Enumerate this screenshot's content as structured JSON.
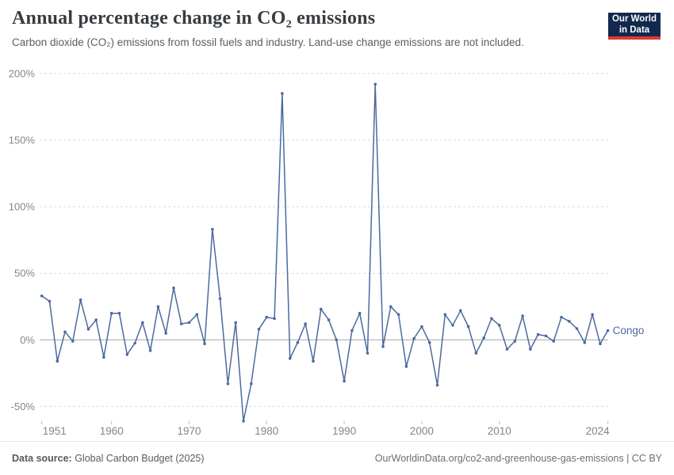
{
  "header": {
    "title": "Annual percentage change in CO₂ emissions",
    "subtitle": "Carbon dioxide (CO₂) emissions from fossil fuels and industry. Land-use change emissions are not included."
  },
  "logo": {
    "line1": "Our World",
    "line2": "in Data",
    "bg_color": "#12294d",
    "bar_color": "#dc3a2f"
  },
  "footer": {
    "source_label": "Data source:",
    "source_value": " Global Carbon Budget (2025)",
    "credit": "OurWorldinData.org/co2-and-greenhouse-gas-emissions | CC BY"
  },
  "chart_data": {
    "type": "line",
    "title": "Annual percentage change in CO₂ emissions",
    "entity_label": "Congo",
    "line_color": "#4c6a9e",
    "axis_text_color": "#858585",
    "grid_color": "#dadada",
    "zero_line_color": "#a6a6a6",
    "tick_mark_color": "#bfbfbf",
    "grid": "horizontal dashed, solid zero line",
    "legend_position": "end-of-line label",
    "ylim": [
      -70,
      205
    ],
    "xlim": [
      1951,
      2024
    ],
    "x": [
      1951,
      1952,
      1953,
      1954,
      1955,
      1956,
      1957,
      1958,
      1959,
      1960,
      1961,
      1962,
      1963,
      1964,
      1965,
      1966,
      1967,
      1968,
      1969,
      1970,
      1971,
      1972,
      1973,
      1974,
      1975,
      1976,
      1977,
      1978,
      1979,
      1980,
      1981,
      1982,
      1983,
      1984,
      1985,
      1986,
      1987,
      1988,
      1989,
      1990,
      1991,
      1992,
      1993,
      1994,
      1995,
      1996,
      1997,
      1998,
      1999,
      2000,
      2001,
      2002,
      2003,
      2004,
      2005,
      2006,
      2007,
      2008,
      2009,
      2010,
      2011,
      2012,
      2013,
      2014,
      2015,
      2016,
      2017,
      2018,
      2019,
      2020,
      2021,
      2022,
      2023,
      2024
    ],
    "series": [
      {
        "name": "Congo",
        "values": [
          33,
          29,
          -16,
          6,
          -1,
          30,
          8,
          15,
          -13,
          20,
          20,
          -11,
          -2.5,
          13,
          -8,
          25,
          5,
          39,
          12,
          13,
          19,
          -3,
          83,
          31,
          -33,
          13,
          -61,
          -33,
          8,
          17,
          16,
          185,
          -14,
          -2,
          12,
          -16,
          23,
          15,
          0,
          -31,
          7,
          20,
          -10,
          192,
          -5,
          25,
          19,
          -20,
          1,
          10,
          -2,
          -34,
          19,
          11,
          22,
          10,
          -10,
          1.5,
          16,
          11,
          -7,
          -1,
          18,
          -7,
          4,
          3,
          -1,
          17,
          14,
          8.5,
          -2,
          19,
          -3,
          7
        ]
      }
    ],
    "y_ticks": [
      {
        "value": 200,
        "label": "200%"
      },
      {
        "value": 150,
        "label": "150%"
      },
      {
        "value": 100,
        "label": "100%"
      },
      {
        "value": 50,
        "label": "50%"
      },
      {
        "value": 0,
        "label": "0%"
      },
      {
        "value": -50,
        "label": "-50%"
      }
    ],
    "x_ticks": [
      {
        "value": 1951,
        "label": "1951"
      },
      {
        "value": 1960,
        "label": "1960"
      },
      {
        "value": 1970,
        "label": "1970"
      },
      {
        "value": 1980,
        "label": "1980"
      },
      {
        "value": 1990,
        "label": "1990"
      },
      {
        "value": 2000,
        "label": "2000"
      },
      {
        "value": 2010,
        "label": "2010"
      },
      {
        "value": 2024,
        "label": "2024"
      }
    ]
  }
}
